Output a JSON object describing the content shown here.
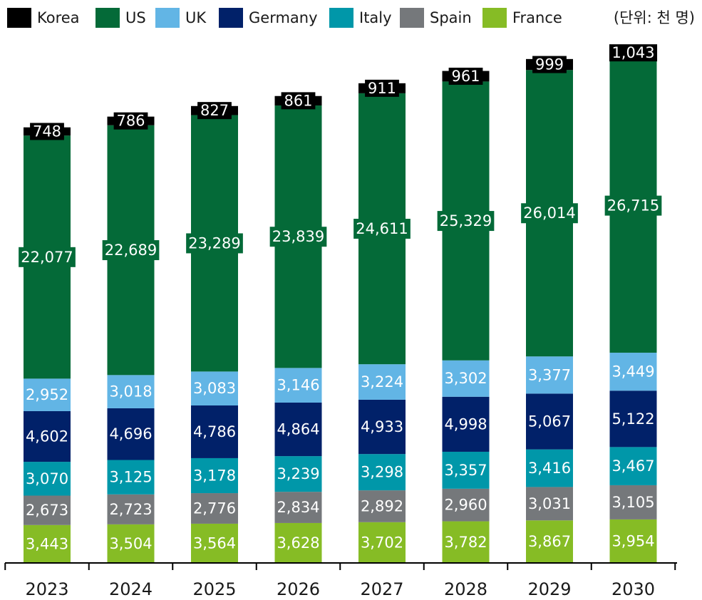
{
  "colors": {
    "Korea": "#000000",
    "US": "#046a38",
    "UK": "#62b5e5",
    "Germany": "#012169",
    "Italy": "#0097a9",
    "Spain": "#75787b",
    "France": "#86bc25"
  },
  "legend": {
    "items": [
      {
        "label": "Korea",
        "color": "#000000"
      },
      {
        "label": "US",
        "color": "#046a38"
      },
      {
        "label": "UK",
        "color": "#62b5e5"
      },
      {
        "label": "Germany",
        "color": "#012169"
      },
      {
        "label": "Italy",
        "color": "#0097a9"
      },
      {
        "label": "Spain",
        "color": "#75787b"
      },
      {
        "label": "France",
        "color": "#86bc25"
      }
    ],
    "unit_note": "(단위: 천 명)"
  },
  "chart_data": {
    "type": "bar",
    "stacked": true,
    "title": "",
    "xlabel": "",
    "ylabel": "",
    "unit": "(단위: 천 명)",
    "categories": [
      "2023",
      "2024",
      "2025",
      "2026",
      "2027",
      "2028",
      "2029",
      "2030"
    ],
    "series": [
      {
        "name": "France",
        "values": [
          3443,
          3504,
          3564,
          3628,
          3702,
          3782,
          3867,
          3954
        ],
        "labels": [
          "3,443",
          "3,504",
          "3,564",
          "3,628",
          "3,702",
          "3,782",
          "3,867",
          "3,954"
        ]
      },
      {
        "name": "Spain",
        "values": [
          2673,
          2723,
          2776,
          2834,
          2892,
          2960,
          3031,
          3105
        ],
        "labels": [
          "2,673",
          "2,723",
          "2,776",
          "2,834",
          "2,892",
          "2,960",
          "3,031",
          "3,105"
        ]
      },
      {
        "name": "Italy",
        "values": [
          3070,
          3125,
          3178,
          3239,
          3298,
          3357,
          3416,
          3467
        ],
        "labels": [
          "3,070",
          "3,125",
          "3,178",
          "3,239",
          "3,298",
          "3,357",
          "3,416",
          "3,467"
        ]
      },
      {
        "name": "Germany",
        "values": [
          4602,
          4696,
          4786,
          4864,
          4933,
          4998,
          5067,
          5122
        ],
        "labels": [
          "4,602",
          "4,696",
          "4,786",
          "4,864",
          "4,933",
          "4,998",
          "5,067",
          "5,122"
        ]
      },
      {
        "name": "UK",
        "values": [
          2952,
          3018,
          3083,
          3146,
          3224,
          3302,
          3377,
          3449
        ],
        "labels": [
          "2,952",
          "3,018",
          "3,083",
          "3,146",
          "3,224",
          "3,302",
          "3,377",
          "3,449"
        ]
      },
      {
        "name": "US",
        "values": [
          22077,
          22689,
          23289,
          23839,
          24611,
          25329,
          26014,
          26715
        ],
        "labels": [
          "22,077",
          "22,689",
          "23,289",
          "23,839",
          "24,611",
          "25,329",
          "26,014",
          "26,715"
        ]
      },
      {
        "name": "Korea",
        "values": [
          748,
          786,
          827,
          861,
          911,
          961,
          999,
          1043
        ],
        "labels": [
          "748",
          "786",
          "827",
          "861",
          "911",
          "961",
          "999",
          "1,043"
        ]
      }
    ],
    "legend_position": "top",
    "grid": false
  }
}
